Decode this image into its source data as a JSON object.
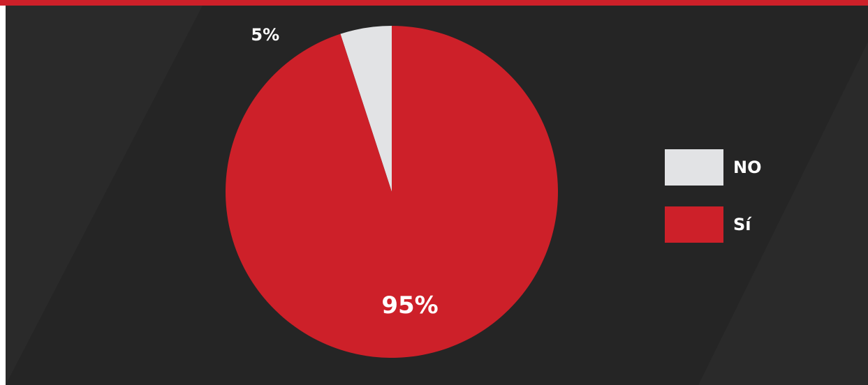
{
  "chart_data": {
    "type": "pie",
    "categories": [
      "NO",
      "Sí"
    ],
    "values": [
      5,
      95
    ],
    "value_labels": [
      "5%",
      "95%"
    ],
    "colors": [
      "#e2e3e5",
      "#cd2029"
    ],
    "legend": "right"
  }
}
